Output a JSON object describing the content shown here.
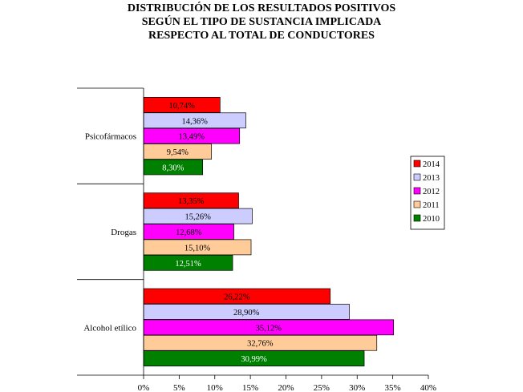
{
  "chart_data": {
    "type": "bar",
    "orientation": "horizontal",
    "title_lines": [
      "DISTRIBUCIÓN DE LOS RESULTADOS POSITIVOS",
      "SEGÚN EL TIPO DE SUSTANCIA IMPLICADA",
      "RESPECTO AL TOTAL DE CONDUCTORES"
    ],
    "categories": [
      "Psicofármacos",
      "Drogas",
      "Alcohol etílico"
    ],
    "series": [
      {
        "name": "2014",
        "color": "#ff0000",
        "values": [
          10.74,
          13.35,
          26.22
        ],
        "labels": [
          "10,74%",
          "13,35%",
          "26,22%"
        ]
      },
      {
        "name": "2013",
        "color": "#ccccff",
        "values": [
          14.36,
          15.26,
          28.9
        ],
        "labels": [
          "14,36%",
          "15,26%",
          "28,90%"
        ]
      },
      {
        "name": "2012",
        "color": "#ff00ff",
        "values": [
          13.49,
          12.68,
          35.12
        ],
        "labels": [
          "13,49%",
          "12,68%",
          "35,12%"
        ]
      },
      {
        "name": "2011",
        "color": "#ffcc99",
        "values": [
          9.54,
          15.1,
          32.76
        ],
        "labels": [
          "9,54%",
          "15,10%",
          "32,76%"
        ]
      },
      {
        "name": "2010",
        "color": "#008000",
        "values": [
          8.3,
          12.51,
          30.99
        ],
        "labels": [
          "8,30%",
          "12,51%",
          "30,99%"
        ]
      }
    ],
    "xlim": [
      0,
      40
    ],
    "xticks": [
      "0%",
      "5%",
      "10%",
      "15%",
      "20%",
      "25%",
      "30%",
      "35%",
      "40%"
    ],
    "grid": false,
    "legend_position": "right"
  }
}
